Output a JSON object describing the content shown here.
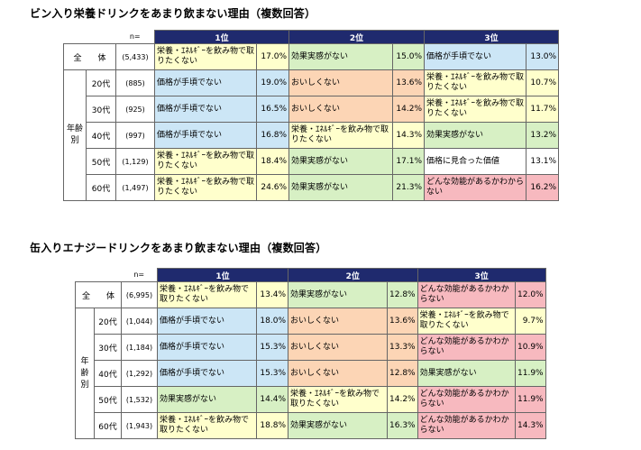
{
  "sections": [
    {
      "title": "ビン入り栄養ドリンクをあまり飲まない理由（複数回答）",
      "n_label": "n=",
      "rank_headers": [
        "1位",
        "2位",
        "3位"
      ],
      "total_label": "全　　体",
      "group_label": "年齢別",
      "rows": [
        {
          "age": "",
          "n": "(5,433)",
          "cells": [
            {
              "label": "栄養・ｴﾈﾙｷﾞｰを飲み物で取りたくない",
              "value": "17.0%",
              "color": "#ffffcc"
            },
            {
              "label": "効果実感がない",
              "value": "15.0%",
              "color": "#d7f0c4"
            },
            {
              "label": "価格が手頃でない",
              "value": "13.0%",
              "color": "#cce6f6"
            }
          ]
        },
        {
          "age": "20代",
          "n": "(885)",
          "cells": [
            {
              "label": "価格が手頃でない",
              "value": "19.0%",
              "color": "#cce6f6"
            },
            {
              "label": "おいしくない",
              "value": "13.6%",
              "color": "#fcd5b5"
            },
            {
              "label": "栄養・ｴﾈﾙｷﾞｰを飲み物で取りたくない",
              "value": "10.7%",
              "color": "#ffffcc"
            }
          ]
        },
        {
          "age": "30代",
          "n": "(925)",
          "cells": [
            {
              "label": "価格が手頃でない",
              "value": "16.5%",
              "color": "#cce6f6"
            },
            {
              "label": "おいしくない",
              "value": "14.2%",
              "color": "#fcd5b5"
            },
            {
              "label": "栄養・ｴﾈﾙｷﾞｰを飲み物で取りたくない",
              "value": "11.7%",
              "color": "#ffffcc"
            }
          ]
        },
        {
          "age": "40代",
          "n": "(997)",
          "cells": [
            {
              "label": "価格が手頃でない",
              "value": "16.8%",
              "color": "#cce6f6"
            },
            {
              "label": "栄養・ｴﾈﾙｷﾞｰを飲み物で取りたくない",
              "value": "14.3%",
              "color": "#ffffcc"
            },
            {
              "label": "効果実感がない",
              "value": "13.2%",
              "color": "#d7f0c4"
            }
          ]
        },
        {
          "age": "50代",
          "n": "(1,129)",
          "cells": [
            {
              "label": "栄養・ｴﾈﾙｷﾞｰを飲み物で取りたくない",
              "value": "18.4%",
              "color": "#ffffcc"
            },
            {
              "label": "効果実感がない",
              "value": "17.1%",
              "color": "#d7f0c4"
            },
            {
              "label": "価格に見合った価値",
              "value": "13.1%",
              "color": "#ffffff"
            }
          ]
        },
        {
          "age": "60代",
          "n": "(1,497)",
          "cells": [
            {
              "label": "栄養・ｴﾈﾙｷﾞｰを飲み物で取りたくない",
              "value": "24.6%",
              "color": "#ffffcc"
            },
            {
              "label": "効果実感がない",
              "value": "21.3%",
              "color": "#d7f0c4"
            },
            {
              "label": "どんな効能があるかわからない",
              "value": "16.2%",
              "color": "#f7b9bf"
            }
          ]
        }
      ]
    },
    {
      "title": "缶入りエナジードリンクをあまり飲まない理由（複数回答）",
      "n_label": "n=",
      "rank_headers": [
        "1位",
        "2位",
        "3位"
      ],
      "total_label": "全　　体",
      "group_label": "年齢別",
      "rows": [
        {
          "age": "",
          "n": "(6,995)",
          "cells": [
            {
              "label": "栄養・ｴﾈﾙｷﾞｰを飲み物で取りたくない",
              "value": "13.4%",
              "color": "#ffffcc"
            },
            {
              "label": "効果実感がない",
              "value": "12.8%",
              "color": "#d7f0c4"
            },
            {
              "label": "どんな効能があるかわからない",
              "value": "12.0%",
              "color": "#f7b9bf"
            }
          ]
        },
        {
          "age": "20代",
          "n": "(1,044)",
          "cells": [
            {
              "label": "価格が手頃でない",
              "value": "18.0%",
              "color": "#cce6f6"
            },
            {
              "label": "おいしくない",
              "value": "13.6%",
              "color": "#fcd5b5"
            },
            {
              "label": "栄養・ｴﾈﾙｷﾞｰを飲み物で取りたくない",
              "value": "9.7%",
              "color": "#ffffcc"
            }
          ]
        },
        {
          "age": "30代",
          "n": "(1,184)",
          "cells": [
            {
              "label": "価格が手頃でない",
              "value": "15.3%",
              "color": "#cce6f6"
            },
            {
              "label": "おいしくない",
              "value": "13.3%",
              "color": "#fcd5b5"
            },
            {
              "label": "どんな効能があるかわからない",
              "value": "10.9%",
              "color": "#f7b9bf"
            }
          ]
        },
        {
          "age": "40代",
          "n": "(1,292)",
          "cells": [
            {
              "label": "価格が手頃でない",
              "value": "15.3%",
              "color": "#cce6f6"
            },
            {
              "label": "おいしくない",
              "value": "12.8%",
              "color": "#fcd5b5"
            },
            {
              "label": "効果実感がない",
              "value": "11.9%",
              "color": "#d7f0c4"
            }
          ]
        },
        {
          "age": "50代",
          "n": "(1,532)",
          "cells": [
            {
              "label": "効果実感がない",
              "value": "14.4%",
              "color": "#d7f0c4"
            },
            {
              "label": "栄養・ｴﾈﾙｷﾞｰを飲み物で取りたくない",
              "value": "14.2%",
              "color": "#ffffcc"
            },
            {
              "label": "どんな効能があるかわからない",
              "value": "11.9%",
              "color": "#f7b9bf"
            }
          ]
        },
        {
          "age": "60代",
          "n": "(1,943)",
          "cells": [
            {
              "label": "栄養・ｴﾈﾙｷﾞｰを飲み物で取りたくない",
              "value": "18.8%",
              "color": "#ffffcc"
            },
            {
              "label": "効果実感がない",
              "value": "16.3%",
              "color": "#d7f0c4"
            },
            {
              "label": "どんな効能があるかわからない",
              "value": "14.3%",
              "color": "#f7b9bf"
            }
          ]
        }
      ]
    }
  ]
}
